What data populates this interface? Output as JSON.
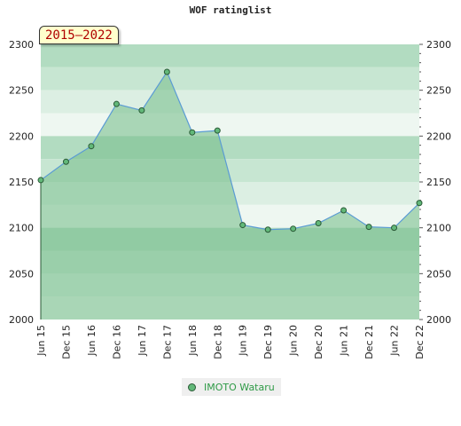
{
  "chart_data": {
    "type": "area",
    "title": "WOF ratinglist",
    "period_badge": "2015–2022",
    "x_labels": [
      "Jun 15",
      "Dec 15",
      "Jun 16",
      "Dec 16",
      "Jun 17",
      "Dec 17",
      "Jun 18",
      "Dec 18",
      "Jun 19",
      "Dec 19",
      "Jun 20",
      "Dec 20",
      "Jun 21",
      "Dec 21",
      "Jun 22",
      "Dec 22"
    ],
    "series": [
      {
        "name": "IMOTO Wataru",
        "values": [
          2152,
          2172,
          2189,
          2235,
          2228,
          2270,
          2204,
          2206,
          2103,
          2098,
          2099,
          2105,
          2119,
          2101,
          2100,
          2127
        ]
      }
    ],
    "ylim": [
      2000,
      2300
    ],
    "y_ticks": [
      "2000",
      "2050",
      "2100",
      "2150",
      "2200",
      "2250",
      "2300"
    ],
    "grid": true,
    "legend_position": "bottom",
    "colors": {
      "area_fill": "#7cc08f",
      "line": "#5a9bd4",
      "marker": "#62b879",
      "marker_edge": "#2a5a36",
      "legend_text": "#2e9a46"
    }
  }
}
